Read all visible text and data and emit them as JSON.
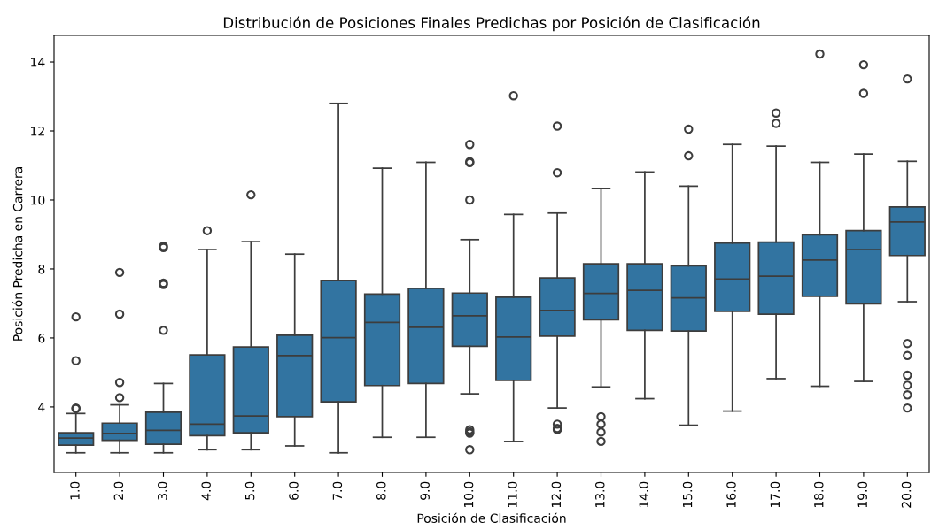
{
  "chart_data": {
    "type": "box",
    "title": "Distribución de Posiciones Finales Predichas por Posición de Clasificación",
    "xlabel": "Posición de Clasificación",
    "ylabel": "Posición Predicha en Carrera",
    "categories": [
      "1.0",
      "2.0",
      "3.0",
      "4.0",
      "5.0",
      "6.0",
      "7.0",
      "8.0",
      "9.0",
      "10.0",
      "11.0",
      "12.0",
      "13.0",
      "14.0",
      "15.0",
      "16.0",
      "17.0",
      "18.0",
      "19.0",
      "20.0"
    ],
    "color": "#3274a1",
    "ylim": [
      2.1,
      14.77
    ],
    "yticks": [
      4,
      6,
      8,
      10,
      12,
      14
    ],
    "grid": false,
    "marker": "circle",
    "boxes": [
      {
        "low": 2.67,
        "q1": 2.89,
        "median": 3.1,
        "q3": 3.25,
        "high": 3.81,
        "outliers": [
          3.95,
          3.97,
          5.34,
          6.61
        ]
      },
      {
        "low": 2.67,
        "q1": 3.03,
        "median": 3.23,
        "q3": 3.53,
        "high": 4.06,
        "outliers": [
          4.27,
          4.71,
          6.69,
          7.9
        ]
      },
      {
        "low": 2.67,
        "q1": 2.92,
        "median": 3.32,
        "q3": 3.85,
        "high": 4.68,
        "outliers": [
          6.22,
          7.55,
          7.59,
          8.62,
          8.66
        ]
      },
      {
        "low": 2.76,
        "q1": 3.17,
        "median": 3.5,
        "q3": 5.51,
        "high": 8.56,
        "outliers": [
          9.11
        ]
      },
      {
        "low": 2.76,
        "q1": 3.25,
        "median": 3.74,
        "q3": 5.74,
        "high": 8.79,
        "outliers": [
          10.15
        ]
      },
      {
        "low": 2.87,
        "q1": 3.72,
        "median": 5.49,
        "q3": 6.08,
        "high": 8.43
      },
      {
        "low": 2.67,
        "q1": 4.15,
        "median": 6.01,
        "q3": 7.66,
        "high": 12.8
      },
      {
        "low": 3.12,
        "q1": 4.62,
        "median": 6.45,
        "q3": 7.27,
        "high": 10.92
      },
      {
        "low": 3.12,
        "q1": 4.68,
        "median": 6.31,
        "q3": 7.44,
        "high": 11.09
      },
      {
        "low": 4.38,
        "q1": 5.76,
        "median": 6.64,
        "q3": 7.3,
        "high": 8.85,
        "outliers": [
          2.76,
          3.24,
          3.28,
          3.34,
          10.0,
          11.08,
          11.11,
          11.61
        ]
      },
      {
        "low": 3.0,
        "q1": 4.77,
        "median": 6.03,
        "q3": 7.18,
        "high": 9.58,
        "outliers": [
          13.02
        ]
      },
      {
        "low": 3.97,
        "q1": 6.05,
        "median": 6.8,
        "q3": 7.74,
        "high": 9.62,
        "outliers": [
          3.34,
          3.38,
          3.5,
          10.79,
          12.14
        ]
      },
      {
        "low": 4.58,
        "q1": 6.53,
        "median": 7.29,
        "q3": 8.15,
        "high": 10.33,
        "outliers": [
          3.0,
          3.27,
          3.5,
          3.72
        ]
      },
      {
        "low": 4.24,
        "q1": 6.22,
        "median": 7.38,
        "q3": 8.15,
        "high": 10.81
      },
      {
        "low": 3.47,
        "q1": 6.2,
        "median": 7.16,
        "q3": 8.09,
        "high": 10.4,
        "outliers": [
          11.28,
          12.05
        ]
      },
      {
        "low": 3.88,
        "q1": 6.77,
        "median": 7.71,
        "q3": 8.75,
        "high": 11.61
      },
      {
        "low": 4.82,
        "q1": 6.69,
        "median": 7.79,
        "q3": 8.78,
        "high": 11.56,
        "outliers": [
          12.22,
          12.52
        ]
      },
      {
        "low": 4.6,
        "q1": 7.21,
        "median": 8.26,
        "q3": 8.99,
        "high": 11.09,
        "outliers": [
          14.23
        ]
      },
      {
        "low": 4.74,
        "q1": 6.99,
        "median": 8.56,
        "q3": 9.11,
        "high": 11.33,
        "outliers": [
          13.09,
          13.92
        ]
      },
      {
        "low": 7.05,
        "q1": 8.39,
        "median": 9.36,
        "q3": 9.8,
        "high": 11.12,
        "outliers": [
          3.97,
          4.35,
          4.63,
          4.92,
          5.49,
          5.84,
          13.51
        ]
      }
    ]
  }
}
